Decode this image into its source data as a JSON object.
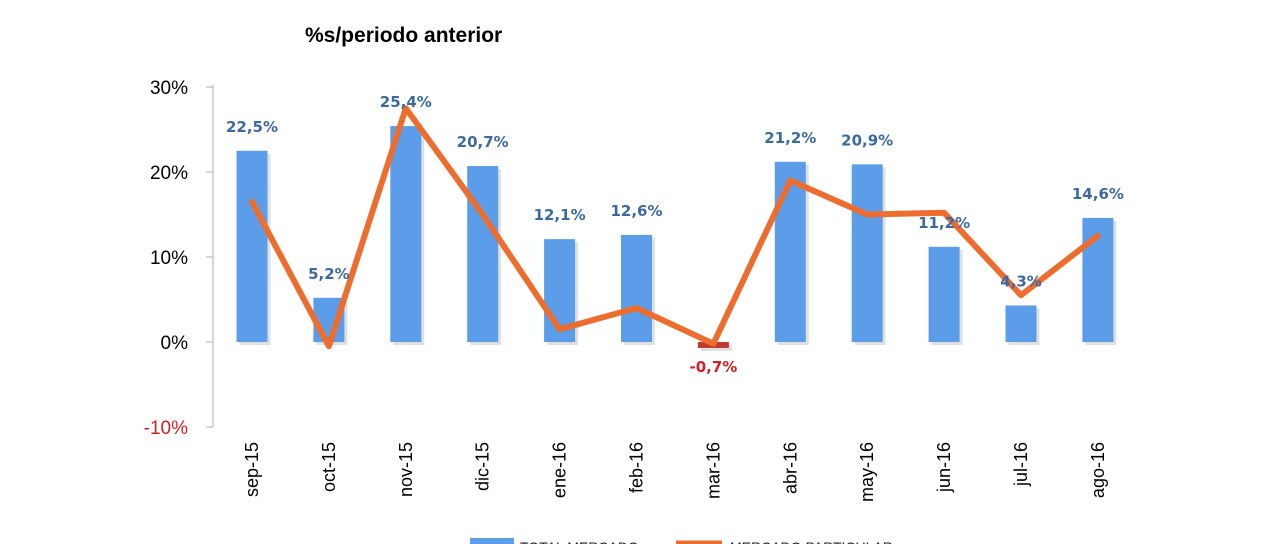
{
  "chart_data": {
    "type": "bar",
    "title": "%s/periodo anterior",
    "categories": [
      "sep-15",
      "oct-15",
      "nov-15",
      "dic-15",
      "ene-16",
      "feb-16",
      "mar-16",
      "abr-16",
      "may-16",
      "jun-16",
      "jul-16",
      "ago-16"
    ],
    "series": [
      {
        "name": "TOTAL MERCADO",
        "kind": "bar",
        "values": [
          22.5,
          5.2,
          25.4,
          20.7,
          12.1,
          12.6,
          -0.7,
          21.2,
          20.9,
          11.2,
          4.3,
          14.6
        ],
        "labels": [
          "22,5%",
          "5,2%",
          "25,4%",
          "20,7%",
          "12,1%",
          "12,6%",
          "-0,7%",
          "21,2%",
          "20,9%",
          "11,2%",
          "4,3%",
          "14,6%"
        ]
      },
      {
        "name": "MERCADO PARTICULAR",
        "kind": "line",
        "values": [
          16.5,
          -0.5,
          27.5,
          15.0,
          1.5,
          4.0,
          -0.2,
          19.0,
          15.0,
          15.2,
          5.5,
          12.5
        ]
      }
    ],
    "yticks": [
      "30%",
      "20%",
      "10%",
      "0%",
      "-10%"
    ],
    "ytick_values": [
      30,
      20,
      10,
      0,
      -10
    ],
    "ylim": [
      -10,
      30
    ],
    "legend_position": "bottom",
    "colors": {
      "bar": "#5b9de9",
      "bar_negative": "#c0392b",
      "line": "#ed6d2e",
      "label": "#3b6aa0",
      "label_negative": "#d21f1f",
      "tick_negative": "#d21f1f",
      "axis": "#bfbfbf"
    }
  }
}
